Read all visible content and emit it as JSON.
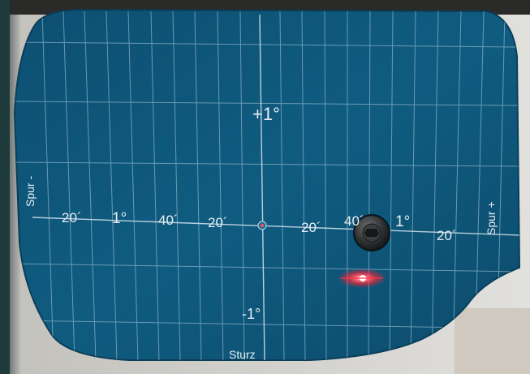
{
  "target_board": {
    "top_mark": "+1°",
    "bottom_mark": "-1°",
    "left_side_label": "Spur -",
    "right_side_label": "Spur +",
    "bottom_label": "Sturz",
    "horizontal_scale": [
      "20´",
      "1°",
      "40´",
      "20´",
      "20´",
      "40´",
      "1°",
      "20´"
    ]
  },
  "colors": {
    "board": "#0f5a7e",
    "board_dark": "#0b4868",
    "grid_line": "#9fc3d6",
    "text": "#e8eef2",
    "laser": "#ff3344",
    "background_wall": "#d8d8d6",
    "background_floor": "#b8b2a8"
  },
  "icons": {
    "mount_screw": "screw-icon",
    "center_marker": "center-dot-icon",
    "laser_spot": "laser-dot-icon"
  }
}
